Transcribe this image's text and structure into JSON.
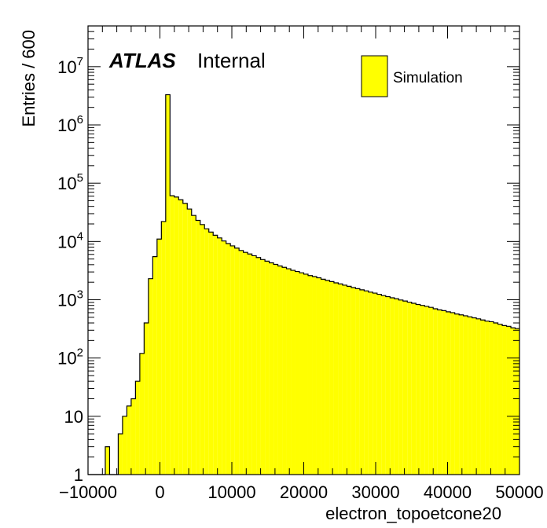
{
  "chart_data": {
    "type": "bar",
    "histogram": true,
    "xlabel": "electron_topoetcone20",
    "ylabel": "Entries / 600",
    "xlim": [
      -10000,
      50000
    ],
    "ylim": [
      1,
      50000000
    ],
    "y_scale": "log",
    "grid": false,
    "legend_position": "top-right",
    "label_main": "ATLAS",
    "label_sub": "Internal",
    "x_tick_labels": [
      "−10000",
      "0",
      "10000",
      "20000",
      "30000",
      "40000",
      "50000"
    ],
    "x_ticks": [
      -10000,
      0,
      10000,
      20000,
      30000,
      40000,
      50000
    ],
    "y_tick_labels": [
      {
        "value": 1,
        "base": "1",
        "exp": ""
      },
      {
        "value": 10,
        "base": "10",
        "exp": ""
      },
      {
        "value": 100,
        "base": "10",
        "exp": "2"
      },
      {
        "value": 1000,
        "base": "10",
        "exp": "3"
      },
      {
        "value": 10000,
        "base": "10",
        "exp": "4"
      },
      {
        "value": 100000,
        "base": "10",
        "exp": "5"
      },
      {
        "value": 1000000,
        "base": "10",
        "exp": "6"
      },
      {
        "value": 10000000,
        "base": "10",
        "exp": "7"
      }
    ],
    "bin_width": 600,
    "x_start": -10000,
    "series": [
      {
        "name": "Simulation",
        "color": "#ffff00",
        "edge_color": "#000000",
        "values": [
          1,
          1,
          1,
          0,
          3,
          1,
          0,
          5,
          10,
          15,
          20,
          40,
          120,
          400,
          2300,
          5500,
          11000,
          22000,
          3300000,
          61000,
          58000,
          52000,
          45000,
          36000,
          28000,
          23000,
          19500,
          16500,
          14500,
          12800,
          11500,
          10200,
          9200,
          8400,
          7700,
          7000,
          6500,
          6100,
          5700,
          5300,
          4900,
          4600,
          4300,
          4050,
          3800,
          3600,
          3400,
          3200,
          3050,
          2900,
          2750,
          2600,
          2500,
          2380,
          2250,
          2150,
          2050,
          1950,
          1870,
          1780,
          1700,
          1620,
          1550,
          1480,
          1420,
          1350,
          1300,
          1240,
          1180,
          1130,
          1080,
          1040,
          990,
          950,
          910,
          870,
          830,
          800,
          770,
          740,
          700,
          670,
          650,
          620,
          600,
          570,
          550,
          530,
          510,
          490,
          470,
          450,
          430,
          420,
          400,
          380,
          360,
          350,
          330,
          320
        ]
      }
    ]
  }
}
